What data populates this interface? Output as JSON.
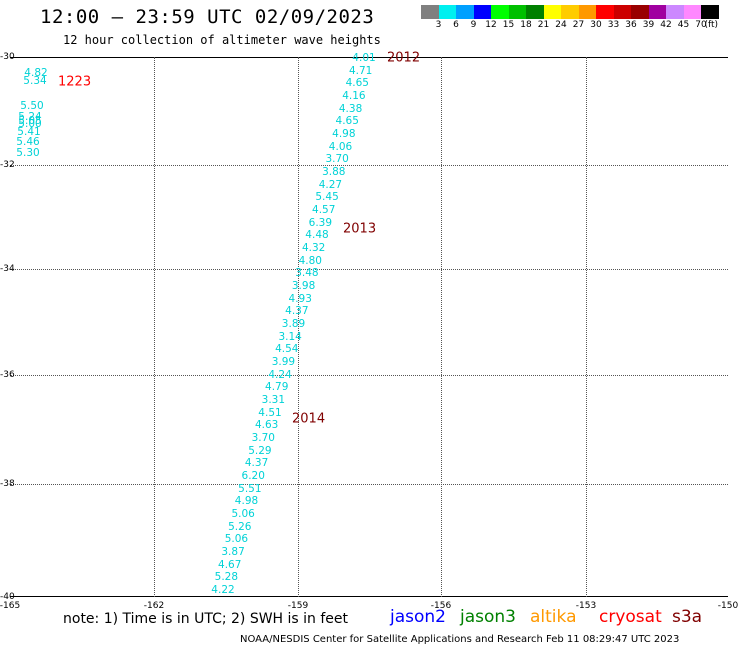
{
  "header": {
    "title": "12:00 – 23:59 UTC 02/09/2023",
    "subtitle": "12 hour collection of altimeter wave heights"
  },
  "legend": {
    "colors": [
      "#808080",
      "#00f0f0",
      "#00a0ff",
      "#0000ff",
      "#00ff00",
      "#00c000",
      "#008000",
      "#ffff00",
      "#ffcc00",
      "#ff9900",
      "#ff0000",
      "#cc0000",
      "#990000",
      "#a000a0",
      "#cc88ff",
      "#ff88ff",
      "#000000"
    ],
    "ticks": [
      "3",
      "6",
      "9",
      "12",
      "15",
      "18",
      "21",
      "24",
      "27",
      "30",
      "33",
      "36",
      "39",
      "42",
      "45",
      "70"
    ],
    "unit": "(ft)"
  },
  "map": {
    "lat_labels": [
      "-30",
      "-32",
      "-34",
      "-36",
      "-38",
      "-40"
    ],
    "lon_labels": [
      "-165",
      "-162",
      "-159",
      "-156",
      "-153",
      "-150"
    ]
  },
  "tracks": [
    {
      "label": "1223",
      "label_color": "#ff0000",
      "values": [
        "4.82",
        "5.34",
        "5.50",
        "5.24",
        "5.05",
        "5.00",
        "5.41",
        "5.46",
        "5.30"
      ]
    },
    {
      "labels": [
        "2012",
        "2013",
        "2014"
      ],
      "label_color": "#800000",
      "values": [
        "4.01",
        "4.71",
        "4.65",
        "4.16",
        "4.38",
        "4.65",
        "4.98",
        "4.06",
        "3.70",
        "3.88",
        "4.27",
        "5.45",
        "4.57",
        "6.39",
        "4.48",
        "4.32",
        "4.80",
        "3.48",
        "3.98",
        "4.93",
        "4.37",
        "3.89",
        "3.14",
        "4.54",
        "3.99",
        "4.24",
        "4.79",
        "3.31",
        "4.51",
        "4.63",
        "3.70",
        "5.29",
        "4.37",
        "6.20",
        "5.51",
        "4.98",
        "5.06",
        "5.26",
        "5.06",
        "3.87",
        "4.67",
        "5.28",
        "4.22"
      ]
    }
  ],
  "footer": {
    "note": "note:  1) Time is in UTC;  2) SWH is in feet",
    "satellites": [
      {
        "name": "jason2",
        "color": "#0000ff"
      },
      {
        "name": "jason3",
        "color": "#008000"
      },
      {
        "name": "altika",
        "color": "#ff9900"
      },
      {
        "name": "cryosat",
        "color": "#ff0000"
      },
      {
        "name": "s3a",
        "color": "#800000"
      }
    ],
    "credit": "NOAA/NESDIS Center for Satellite Applications and Research    Feb 11 08:29:47 UTC 2023"
  }
}
